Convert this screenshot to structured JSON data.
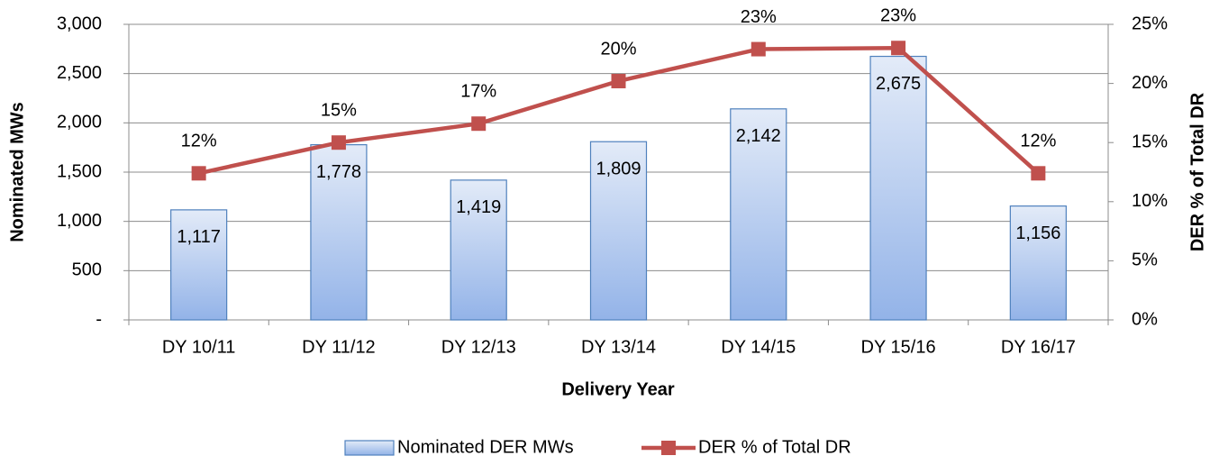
{
  "chart_data": {
    "type": "bar",
    "xlabel": "Delivery Year",
    "ylabel": "Nominated MWs",
    "y2label": "DER % of Total DR",
    "categories": [
      "DY 10/11",
      "DY 11/12",
      "DY 12/13",
      "DY 13/14",
      "DY 14/15",
      "DY 15/16",
      "DY 16/17"
    ],
    "series": [
      {
        "name": "Nominated DER MWs",
        "type": "bar",
        "color": "#4f81bd",
        "values": [
          1117,
          1778,
          1419,
          1809,
          2142,
          2675,
          1156
        ],
        "value_labels": [
          "1,117",
          "1,778",
          "1,419",
          "1,809",
          "2,142",
          "2,675",
          "1,156"
        ]
      },
      {
        "name": "DER % of Total DR",
        "type": "line",
        "axis": "y2",
        "color": "#c0504d",
        "values": [
          12.4,
          15.0,
          16.6,
          20.2,
          22.9,
          23.0,
          12.4
        ],
        "value_labels": [
          "12%",
          "15%",
          "17%",
          "20%",
          "23%",
          "23%",
          "12%"
        ]
      }
    ],
    "ylim": [
      0,
      3000
    ],
    "yticks": [
      {
        "value": 0,
        "label": "-"
      },
      500,
      {
        "value": 1000,
        "label": "1,000"
      },
      {
        "value": 1500,
        "label": "1,500"
      },
      {
        "value": 2000,
        "label": "2,000"
      },
      {
        "value": 2500,
        "label": "2,500"
      },
      {
        "value": 3000,
        "label": "3,000"
      }
    ],
    "y2lim": [
      0,
      25
    ],
    "y2ticks": [
      {
        "value": 0,
        "label": "0%"
      },
      {
        "value": 5,
        "label": "5%"
      },
      {
        "value": 10,
        "label": "10%"
      },
      {
        "value": 15,
        "label": "15%"
      },
      {
        "value": 20,
        "label": "20%"
      },
      {
        "value": 25,
        "label": "25%"
      }
    ],
    "grid": true,
    "legend": "bottom"
  }
}
